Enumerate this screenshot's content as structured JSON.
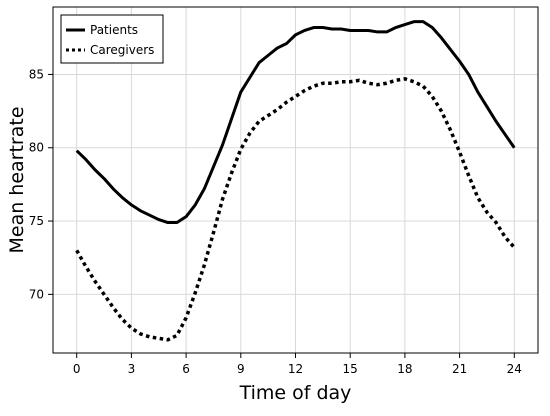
{
  "chart_data": {
    "type": "line",
    "title": "",
    "xlabel": "Time of day",
    "ylabel": "Mean heartrate",
    "xlim": [
      -1.3,
      25.3
    ],
    "ylim": [
      66.0,
      89.6
    ],
    "xticks": [
      0,
      3,
      6,
      9,
      12,
      15,
      18,
      21,
      24
    ],
    "yticks": [
      70,
      75,
      80,
      85
    ],
    "grid": true,
    "legend": "top-left",
    "series": [
      {
        "name": "Patients",
        "style": "solid",
        "color": "#000000",
        "x": [
          0,
          0.5,
          1,
          1.5,
          2,
          2.5,
          3,
          3.5,
          4,
          4.5,
          5,
          5.5,
          6,
          6.5,
          7,
          7.5,
          8,
          8.5,
          9,
          9.5,
          10,
          10.5,
          11,
          11.5,
          12,
          12.5,
          13,
          13.5,
          14,
          14.5,
          15,
          15.5,
          16,
          16.5,
          17,
          17.5,
          18,
          18.5,
          19,
          19.5,
          20,
          20.5,
          21,
          21.5,
          22,
          22.5,
          23,
          23.5,
          24
        ],
        "y": [
          79.8,
          79.2,
          78.5,
          77.9,
          77.2,
          76.6,
          76.1,
          75.7,
          75.4,
          75.1,
          74.9,
          74.9,
          75.3,
          76.1,
          77.2,
          78.7,
          80.2,
          82.0,
          83.8,
          84.8,
          85.8,
          86.3,
          86.8,
          87.1,
          87.7,
          88.0,
          88.2,
          88.2,
          88.1,
          88.1,
          88.0,
          88.0,
          88.0,
          87.9,
          87.9,
          88.2,
          88.4,
          88.6,
          88.6,
          88.2,
          87.5,
          86.7,
          85.9,
          85.0,
          83.8,
          82.8,
          81.8,
          80.9,
          80.0
        ]
      },
      {
        "name": "Caregivers",
        "style": "dotted",
        "color": "#000000",
        "x": [
          0,
          0.5,
          1,
          1.5,
          2,
          2.5,
          3,
          3.5,
          4,
          4.5,
          5,
          5.5,
          6,
          6.5,
          7,
          7.5,
          8,
          8.5,
          9,
          9.5,
          10,
          10.5,
          11,
          11.5,
          12,
          12.5,
          13,
          13.5,
          14,
          14.5,
          15,
          15.5,
          16,
          16.5,
          17,
          17.5,
          18,
          18.5,
          19,
          19.5,
          20,
          20.5,
          21,
          21.5,
          22,
          22.5,
          23,
          23.5,
          24
        ],
        "y": [
          73.0,
          71.9,
          70.9,
          70.0,
          69.1,
          68.3,
          67.7,
          67.3,
          67.1,
          67.0,
          66.9,
          67.2,
          68.4,
          70.1,
          72.0,
          74.2,
          76.5,
          78.3,
          79.9,
          81.0,
          81.8,
          82.2,
          82.6,
          83.1,
          83.5,
          83.9,
          84.2,
          84.4,
          84.4,
          84.5,
          84.5,
          84.6,
          84.4,
          84.3,
          84.4,
          84.6,
          84.7,
          84.5,
          84.2,
          83.5,
          82.5,
          81.2,
          79.7,
          78.1,
          76.6,
          75.6,
          74.9,
          73.9,
          73.2
        ]
      }
    ]
  }
}
